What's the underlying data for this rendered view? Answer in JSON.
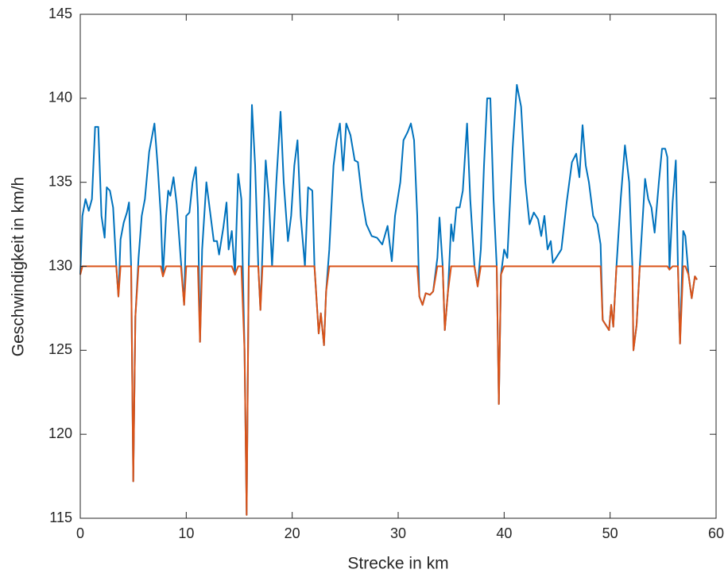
{
  "chart_data": {
    "type": "line",
    "x_label": "Strecke in km",
    "y_label": "Geschwindigkeit in km/h",
    "xlim": [
      0,
      60
    ],
    "xticks": [
      0,
      10,
      20,
      30,
      40,
      50,
      60
    ],
    "ylim": [
      115,
      145
    ],
    "yticks": [
      115,
      120,
      125,
      130,
      135,
      140,
      145
    ],
    "grid": false,
    "x": [
      0,
      0.2,
      0.5,
      0.8,
      1.1,
      1.4,
      1.7,
      2.0,
      2.3,
      2.5,
      2.8,
      3.1,
      3.4,
      3.6,
      3.8,
      4.1,
      4.4,
      4.6,
      4.8,
      5.0,
      5.2,
      5.5,
      5.8,
      6.1,
      6.5,
      7.0,
      7.3,
      7.6,
      7.8,
      8.1,
      8.3,
      8.5,
      8.8,
      9.1,
      9.5,
      9.8,
      10.0,
      10.3,
      10.6,
      10.9,
      11.1,
      11.3,
      11.5,
      11.9,
      12.3,
      12.6,
      12.9,
      13.1,
      13.5,
      13.8,
      14.0,
      14.3,
      14.6,
      14.9,
      15.2,
      15.5,
      15.7,
      15.9,
      16.2,
      16.5,
      16.8,
      17.0,
      17.2,
      17.5,
      17.8,
      18.1,
      18.5,
      18.9,
      19.2,
      19.6,
      19.9,
      20.2,
      20.5,
      20.8,
      21.2,
      21.5,
      21.9,
      22.1,
      22.5,
      22.7,
      23.0,
      23.2,
      23.5,
      23.9,
      24.2,
      24.5,
      24.8,
      25.1,
      25.5,
      25.9,
      26.2,
      26.6,
      27.0,
      27.5,
      28.0,
      28.5,
      29.0,
      29.4,
      29.7,
      30.2,
      30.5,
      30.9,
      31.2,
      31.5,
      31.8,
      32.0,
      32.3,
      32.6,
      33.0,
      33.3,
      33.7,
      33.9,
      34.2,
      34.4,
      34.7,
      35.0,
      35.2,
      35.5,
      35.8,
      36.1,
      36.5,
      36.8,
      37.2,
      37.5,
      37.8,
      38.1,
      38.4,
      38.7,
      39.0,
      39.3,
      39.5,
      39.7,
      40.0,
      40.3,
      40.8,
      41.2,
      41.6,
      42.0,
      42.4,
      42.8,
      43.2,
      43.5,
      43.8,
      44.1,
      44.4,
      44.6,
      45.0,
      45.4,
      45.9,
      46.4,
      46.8,
      47.1,
      47.4,
      47.7,
      48.0,
      48.4,
      48.8,
      49.1,
      49.3,
      49.6,
      49.9,
      50.1,
      50.3,
      50.6,
      51.0,
      51.4,
      51.8,
      52.1,
      52.2,
      52.5,
      52.8,
      53.3,
      53.6,
      53.9,
      54.2,
      54.6,
      54.9,
      55.2,
      55.4,
      55.6,
      55.9,
      56.2,
      56.4,
      56.6,
      56.9,
      57.1,
      57.4,
      57.7,
      58.0,
      58.2
    ],
    "series": [
      {
        "color": "#0072bd",
        "values": [
          129.5,
          133,
          134,
          133.3,
          134,
          138.3,
          138.3,
          133,
          131.7,
          134.7,
          134.5,
          133.5,
          130,
          128.2,
          131.6,
          132.6,
          133.2,
          133.8,
          130,
          117.2,
          127,
          130.5,
          133,
          134,
          136.8,
          138.5,
          136,
          133,
          129.4,
          133,
          134.5,
          134.2,
          135.3,
          133.7,
          130.3,
          127.7,
          133,
          133.2,
          135,
          135.9,
          133.5,
          125.5,
          131,
          135,
          133,
          131.5,
          131.5,
          130.7,
          132.3,
          133.8,
          131,
          132.1,
          129.5,
          135.5,
          134,
          125,
          115.2,
          130,
          139.6,
          136,
          130,
          127.4,
          131,
          136.3,
          134,
          130,
          135,
          139.2,
          135,
          131.5,
          133,
          136,
          137.5,
          133,
          130,
          134.7,
          134.5,
          130,
          126,
          127.2,
          125.3,
          128.5,
          131,
          136,
          137.5,
          138.5,
          135.7,
          138.5,
          137.8,
          136.3,
          136.2,
          134,
          132.5,
          131.8,
          131.7,
          131.3,
          132.4,
          130.3,
          133,
          135,
          137.5,
          138,
          138.5,
          137.5,
          133,
          128.2,
          127.7,
          128.4,
          128.3,
          128.5,
          130.5,
          132.9,
          130,
          126.2,
          128.5,
          132.5,
          131.5,
          133.5,
          133.5,
          134.5,
          138.5,
          134,
          130,
          128.8,
          131,
          136,
          140,
          140,
          134,
          130,
          121.8,
          129.5,
          131,
          130.5,
          137,
          140.8,
          139.5,
          135,
          132.5,
          133.2,
          132.8,
          131.8,
          133,
          131,
          131.5,
          130.2,
          130.6,
          131,
          133.8,
          136.2,
          136.7,
          135.3,
          138.4,
          136,
          135,
          133,
          132.5,
          131.3,
          126.8,
          126.5,
          126.2,
          127.7,
          126.4,
          130,
          134,
          137.2,
          135,
          130,
          125,
          126.5,
          130,
          135.2,
          134,
          133.5,
          132,
          135,
          137,
          137,
          136.5,
          129.8,
          133.8,
          136.3,
          130,
          125.4,
          132.1,
          131.8,
          129.5,
          128.1,
          129.4,
          129.2
        ]
      },
      {
        "color": "#d95319",
        "values": [
          129.5,
          130,
          130,
          130,
          130,
          130,
          130,
          130,
          130,
          130,
          130,
          130,
          130,
          128.2,
          130,
          130,
          130,
          130,
          130,
          117.2,
          127,
          130,
          130,
          130,
          130,
          130,
          130,
          130,
          129.4,
          130,
          130,
          130,
          130,
          130,
          130,
          127.7,
          130,
          130,
          130,
          130,
          130,
          125.5,
          130,
          130,
          130,
          130,
          130,
          130,
          130,
          130,
          130,
          130,
          129.5,
          130,
          130,
          125,
          115.2,
          130,
          130,
          130,
          130,
          127.4,
          130,
          130,
          130,
          130,
          130,
          130,
          130,
          130,
          130,
          130,
          130,
          130,
          130,
          130,
          130,
          130,
          126,
          127.2,
          125.3,
          128.5,
          130,
          130,
          130,
          130,
          130,
          130,
          130,
          130,
          130,
          130,
          130,
          130,
          130,
          130,
          130,
          130,
          130,
          130,
          130,
          130,
          130,
          130,
          130,
          128.2,
          127.7,
          128.4,
          128.3,
          128.5,
          130,
          130,
          130,
          126.2,
          128.5,
          130,
          130,
          130,
          130,
          130,
          130,
          130,
          130,
          128.8,
          130,
          130,
          130,
          130,
          130,
          130,
          121.8,
          129.5,
          130,
          130,
          130,
          130,
          130,
          130,
          130,
          130,
          130,
          130,
          130,
          130,
          130,
          130,
          130,
          130,
          130,
          130,
          130,
          130,
          130,
          130,
          130,
          130,
          130,
          130,
          126.8,
          126.5,
          126.2,
          127.7,
          126.4,
          130,
          130,
          130,
          130,
          130,
          125,
          126.5,
          130,
          130,
          130,
          130,
          130,
          130,
          130,
          130,
          130,
          129.8,
          130,
          130,
          130,
          125.4,
          130,
          130,
          129.5,
          128.1,
          129.4,
          129.2
        ]
      }
    ]
  }
}
